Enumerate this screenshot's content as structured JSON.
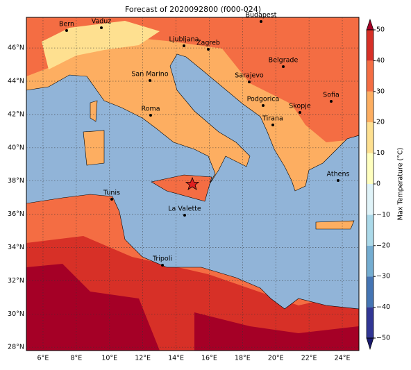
{
  "title": "Forecast of 2020092800 (f000-024)",
  "lon_ticks": [
    {
      "value": 6,
      "label": "6°E"
    },
    {
      "value": 8,
      "label": "8°E"
    },
    {
      "value": 10,
      "label": "10°E"
    },
    {
      "value": 12,
      "label": "12°E"
    },
    {
      "value": 14,
      "label": "14°E"
    },
    {
      "value": 16,
      "label": "16°E"
    },
    {
      "value": 18,
      "label": "18°E"
    },
    {
      "value": 20,
      "label": "20°E"
    },
    {
      "value": 22,
      "label": "22°E"
    },
    {
      "value": 24,
      "label": "24°E"
    }
  ],
  "lat_ticks": [
    {
      "value": 28,
      "label": "28°N"
    },
    {
      "value": 30,
      "label": "30°N"
    },
    {
      "value": 32,
      "label": "32°N"
    },
    {
      "value": 34,
      "label": "34°N"
    },
    {
      "value": 36,
      "label": "36°N"
    },
    {
      "value": 38,
      "label": "38°N"
    },
    {
      "value": 40,
      "label": "40°N"
    },
    {
      "value": 42,
      "label": "42°N"
    },
    {
      "value": 44,
      "label": "44°N"
    },
    {
      "value": 46,
      "label": "46°N"
    }
  ],
  "cities": [
    "Bern",
    "Vaduz",
    "Budapest",
    "Ljubljana",
    "Zagreb",
    "Belgrade",
    "San Marino",
    "Sarajevo",
    "Sofia",
    "Podgorica",
    "Skopje",
    "Roma",
    "Tirana",
    "Athens",
    "Tunis",
    "La Valette",
    "Tripoli"
  ],
  "colorbar": {
    "label": "Max Temperature (°C)",
    "levels": [
      -50,
      -40,
      -30,
      -20,
      -10,
      0,
      10,
      20,
      30,
      40,
      50
    ],
    "colors": [
      "#313695",
      "#4575b4",
      "#74add1",
      "#abd9e9",
      "#e0f3f8",
      "#ffffbf",
      "#fee090",
      "#fdae61",
      "#f46d43",
      "#d73027"
    ],
    "under_color": "#1a1a6e",
    "over_color": "#a50026",
    "ticks": [
      {
        "value": -50,
        "label": "−50"
      },
      {
        "value": -40,
        "label": "−40"
      },
      {
        "value": -30,
        "label": "−30"
      },
      {
        "value": -20,
        "label": "−20"
      },
      {
        "value": -10,
        "label": "−10"
      },
      0,
      10,
      20,
      30,
      40,
      50
    ]
  }
}
